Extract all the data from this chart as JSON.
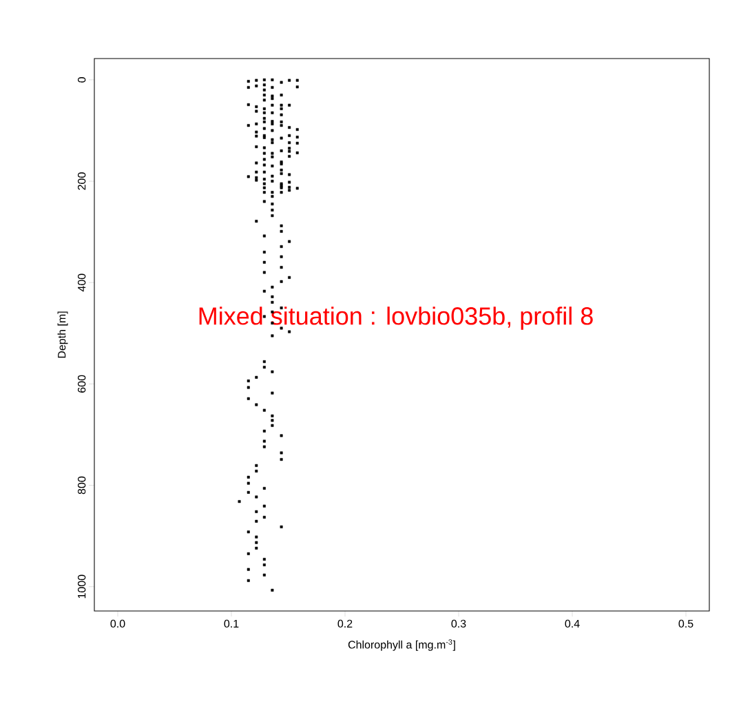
{
  "chart_data": {
    "type": "scatter",
    "xlabel": "Chlorophyll a [mg.m$^{-3}$]",
    "ylabel": "Depth [m]",
    "annotations": [
      "Mixed situation : lovbio035b, profil 8"
    ],
    "xlim": [
      -0.0206,
      0.5206
    ],
    "ylim": [
      1048,
      -42
    ],
    "xticks": [
      {
        "value": 0,
        "label": "0.0"
      },
      0.1,
      0.2,
      0.3,
      0.4,
      0.5
    ],
    "yticks": [
      0,
      200,
      400,
      600,
      800,
      1000
    ],
    "marker": "square",
    "grid": false,
    "series": [
      {
        "color": "#000000",
        "x": [
          0.107,
          0.115,
          0.115,
          0.115,
          0.115,
          0.115,
          0.115,
          0.115,
          0.115,
          0.115,
          0.115,
          0.115,
          0.115,
          0.115,
          0.115,
          0.115,
          0.122,
          0.122,
          0.122,
          0.122,
          0.122,
          0.122,
          0.122,
          0.122,
          0.122,
          0.122,
          0.122,
          0.122,
          0.122,
          0.122,
          0.122,
          0.122,
          0.122,
          0.122,
          0.122,
          0.122,
          0.122,
          0.122,
          0.122,
          0.129,
          0.129,
          0.129,
          0.129,
          0.129,
          0.129,
          0.129,
          0.129,
          0.129,
          0.129,
          0.129,
          0.129,
          0.129,
          0.129,
          0.129,
          0.129,
          0.129,
          0.129,
          0.129,
          0.129,
          0.129,
          0.129,
          0.129,
          0.129,
          0.129,
          0.129,
          0.129,
          0.129,
          0.129,
          0.129,
          0.129,
          0.129,
          0.129,
          0.129,
          0.129,
          0.129,
          0.129,
          0.129,
          0.129,
          0.129,
          0.136,
          0.136,
          0.136,
          0.136,
          0.136,
          0.136,
          0.136,
          0.136,
          0.136,
          0.136,
          0.136,
          0.136,
          0.136,
          0.136,
          0.136,
          0.136,
          0.136,
          0.136,
          0.136,
          0.136,
          0.136,
          0.136,
          0.136,
          0.136,
          0.136,
          0.136,
          0.136,
          0.136,
          0.136,
          0.136,
          0.136,
          0.136,
          0.136,
          0.144,
          0.144,
          0.144,
          0.144,
          0.144,
          0.144,
          0.144,
          0.144,
          0.144,
          0.144,
          0.144,
          0.144,
          0.144,
          0.144,
          0.144,
          0.144,
          0.144,
          0.144,
          0.144,
          0.144,
          0.144,
          0.144,
          0.144,
          0.144,
          0.144,
          0.144,
          0.144,
          0.144,
          0.144,
          0.151,
          0.151,
          0.151,
          0.151,
          0.151,
          0.151,
          0.151,
          0.151,
          0.151,
          0.151,
          0.151,
          0.151,
          0.151,
          0.151,
          0.151,
          0.158,
          0.158,
          0.158,
          0.158,
          0.158,
          0.158,
          0.158
        ],
        "values": [
          832,
          3,
          15,
          49,
          90,
          191,
          594,
          607,
          629,
          784,
          796,
          814,
          892,
          935,
          966,
          988,
          1,
          12,
          53,
          62,
          87,
          103,
          111,
          132,
          164,
          182,
          193,
          198,
          279,
          587,
          641,
          761,
          772,
          823,
          852,
          871,
          902,
          913,
          924,
          0,
          10,
          20,
          30,
          40,
          57,
          65,
          76,
          83,
          96,
          110,
          114,
          134,
          145,
          157,
          168,
          182,
          196,
          205,
          213,
          222,
          240,
          308,
          340,
          360,
          380,
          417,
          467,
          556,
          567,
          652,
          693,
          713,
          724,
          806,
          841,
          863,
          946,
          957,
          977,
          0,
          15,
          32,
          37,
          50,
          65,
          82,
          87,
          100,
          118,
          124,
          145,
          152,
          170,
          190,
          200,
          222,
          230,
          245,
          257,
          268,
          409,
          428,
          439,
          458,
          480,
          505,
          576,
          618,
          663,
          672,
          682,
          1007,
          5,
          30,
          50,
          57,
          69,
          83,
          90,
          115,
          140,
          162,
          166,
          178,
          185,
          205,
          209,
          213,
          222,
          288,
          299,
          329,
          349,
          370,
          398,
          450,
          490,
          702,
          736,
          749,
          882,
          1,
          50,
          94,
          110,
          124,
          135,
          141,
          151,
          187,
          202,
          212,
          218,
          319,
          390,
          497,
          1,
          14,
          98,
          113,
          125,
          144,
          214
        ]
      }
    ]
  }
}
